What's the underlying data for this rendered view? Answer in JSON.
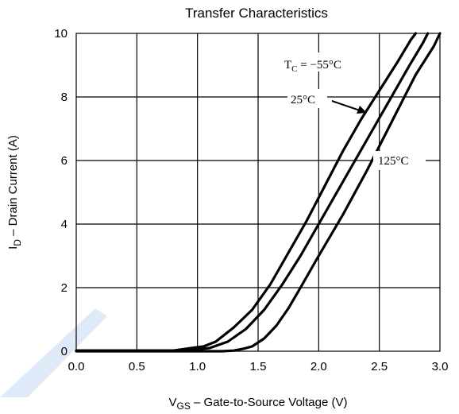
{
  "chart_data": {
    "type": "line",
    "title": "Transfer Characteristics",
    "xlabel": {
      "main": "V",
      "sub": "GS",
      "rest": " –  Gate-to-Source Voltage (V)"
    },
    "ylabel": {
      "main": "I",
      "sub": "D",
      "rest": " –  Drain Current (A)"
    },
    "xlim": [
      0,
      3.0
    ],
    "ylim": [
      0,
      10
    ],
    "grid": true,
    "x_ticks": [
      0.0,
      0.5,
      1.0,
      1.5,
      2.0,
      2.5,
      3.0
    ],
    "x_tick_labels": [
      "0.0",
      "0.5",
      "1.0",
      "1.5",
      "2.0",
      "2.5",
      "3.0"
    ],
    "y_ticks": [
      0,
      2,
      4,
      6,
      8,
      10
    ],
    "y_tick_labels": [
      "0",
      "2",
      "4",
      "6",
      "8",
      "10"
    ],
    "series": [
      {
        "name": "T_C = −55°C",
        "x": [
          0.0,
          0.8,
          0.95,
          1.1,
          1.25,
          1.4,
          1.55,
          1.7,
          1.85,
          2.0,
          2.15,
          2.3,
          2.45,
          2.6,
          2.75,
          2.86,
          2.9
        ],
        "y": [
          0.02,
          0.02,
          0.04,
          0.1,
          0.3,
          0.7,
          1.3,
          2.1,
          3.0,
          4.0,
          5.0,
          6.0,
          7.0,
          8.0,
          9.0,
          9.7,
          10.0
        ]
      },
      {
        "name": "25°C",
        "x": [
          0.0,
          0.8,
          0.95,
          1.05,
          1.15,
          1.3,
          1.45,
          1.6,
          1.75,
          1.9,
          2.05,
          2.2,
          2.35,
          2.5,
          2.65,
          2.76,
          2.8
        ],
        "y": [
          0.02,
          0.02,
          0.1,
          0.15,
          0.3,
          0.75,
          1.3,
          2.1,
          3.1,
          4.1,
          5.2,
          6.3,
          7.3,
          8.2,
          9.1,
          9.8,
          10.0
        ]
      },
      {
        "name": "125°C",
        "x": [
          0.0,
          1.0,
          1.2,
          1.3,
          1.38,
          1.45,
          1.55,
          1.65,
          1.75,
          1.85,
          2.0,
          2.2,
          2.4,
          2.6,
          2.8,
          2.95,
          3.0
        ],
        "y": [
          0.0,
          0.0,
          0.0,
          0.02,
          0.08,
          0.15,
          0.4,
          0.8,
          1.35,
          2.0,
          3.0,
          4.3,
          5.7,
          7.2,
          8.7,
          9.6,
          10.0
        ]
      }
    ],
    "annotations": [
      {
        "id": "tc",
        "main": "T",
        "sub": "C",
        "rest": " = −55°C",
        "x": 2.82,
        "y": 9.0
      },
      {
        "id": "t25",
        "text": "25°C",
        "x": 2.45,
        "y": 8.0,
        "arrow_to": [
          2.6,
          7.5
        ]
      },
      {
        "id": "t125",
        "text": "125°C",
        "x": 2.8,
        "y": 6.0
      }
    ]
  }
}
